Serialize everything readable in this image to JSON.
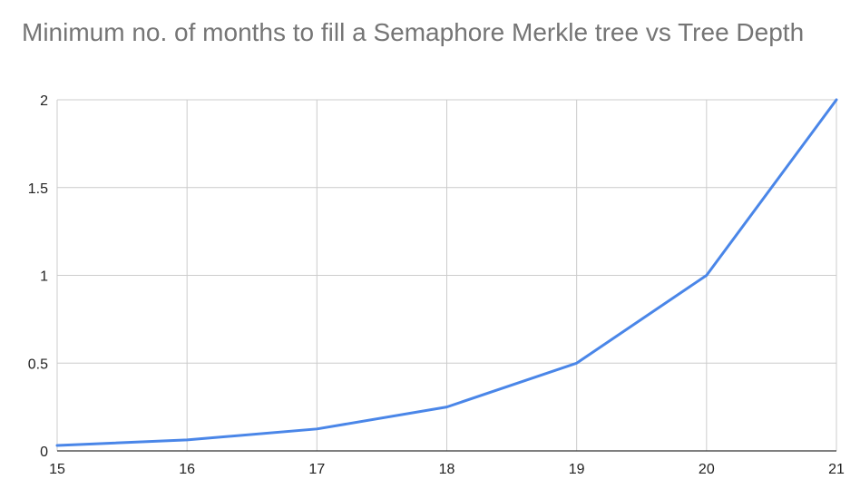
{
  "chart_data": {
    "type": "line",
    "title": "Minimum no. of months to fill a Semaphore Merkle tree vs Tree Depth",
    "xlabel": "",
    "ylabel": "",
    "x": [
      15,
      16,
      17,
      18,
      19,
      20,
      21
    ],
    "series": [
      {
        "values": [
          0.03125,
          0.0625,
          0.125,
          0.25,
          0.5,
          1,
          2
        ]
      }
    ],
    "xlim": [
      15,
      21
    ],
    "ylim": [
      0,
      2
    ],
    "x_ticks": [
      "15",
      "16",
      "17",
      "18",
      "19",
      "20",
      "21"
    ],
    "y_ticks": [
      "0",
      "0.5",
      "1",
      "1.5",
      "2"
    ],
    "y_tick_values": [
      0,
      0.5,
      1,
      1.5,
      2
    ],
    "grid": true,
    "legend": "none",
    "colors": {
      "line": "#4a86e8",
      "grid": "#cccccc",
      "axis": "#333333",
      "title": "#757575"
    }
  }
}
